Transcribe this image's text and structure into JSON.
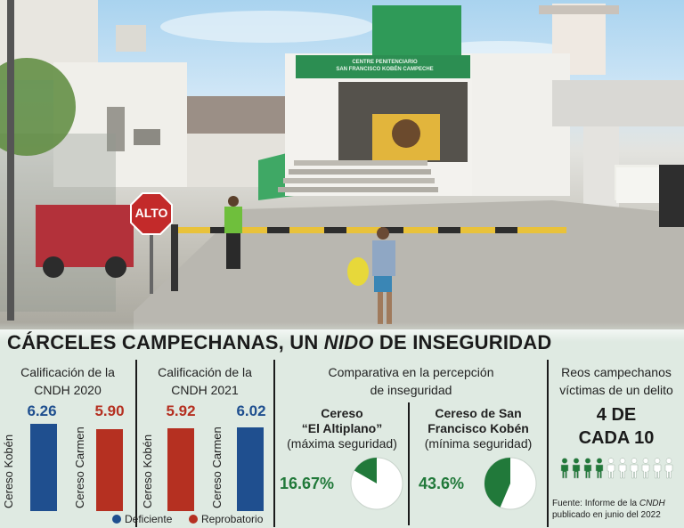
{
  "photo": {
    "stop_sign": "ALTO",
    "building_sign": [
      "CENTRE PENITENCIARIO",
      "SAN FRANCISCO KOBÉN CAMPECHE"
    ]
  },
  "headline": {
    "part1": "CÁRCELES CAMPECHANAS, UN ",
    "italic": "NIDO",
    "part2": " DE INSEGURIDAD"
  },
  "ratings": [
    {
      "title": [
        "Calificación de la",
        "CNDH 2020"
      ],
      "items": [
        {
          "label": "Cereso Kobén",
          "value": 6.26,
          "display": "6.26",
          "status": "Deficiente"
        },
        {
          "label": "Cereso Carmen",
          "value": 5.9,
          "display": "5.90",
          "status": "Reprobatorio"
        }
      ]
    },
    {
      "title": [
        "Calificación de la",
        "CNDH 2021"
      ],
      "items": [
        {
          "label": "Cereso Kobén",
          "value": 5.92,
          "display": "5.92",
          "status": "Reprobatorio"
        },
        {
          "label": "Cereso Carmen",
          "value": 6.02,
          "display": "6.02",
          "status": "Deficiente"
        }
      ]
    }
  ],
  "legend": [
    {
      "label": "Deficiente",
      "color": "#1f4f8f"
    },
    {
      "label": "Reprobatorio",
      "color": "#b53021"
    }
  ],
  "comparison": {
    "title": [
      "Comparativa en la percepción",
      "de inseguridad"
    ],
    "items": [
      {
        "name": [
          "Cereso",
          "“El Altiplano”"
        ],
        "note": "(máxima seguridad)",
        "display": "16.67%",
        "value": 16.67
      },
      {
        "name": [
          "Cereso de San",
          "Francisco Kobén"
        ],
        "note": "(mínima seguridad)",
        "display": "43.6%",
        "value": 43.6
      }
    ]
  },
  "victims": {
    "title": [
      "Reos campechanos",
      "víctimas de un delito"
    ],
    "big": [
      "4 DE",
      "CADA 10"
    ],
    "affected": 4,
    "total": 10,
    "source": [
      "Fuente: Informe de la ",
      "CNDH",
      "publicado en junio del 2022"
    ]
  },
  "colors": {
    "blue": "#1f4f8f",
    "red": "#b53021",
    "green": "#21793a",
    "panel": "#dfeae2"
  }
}
